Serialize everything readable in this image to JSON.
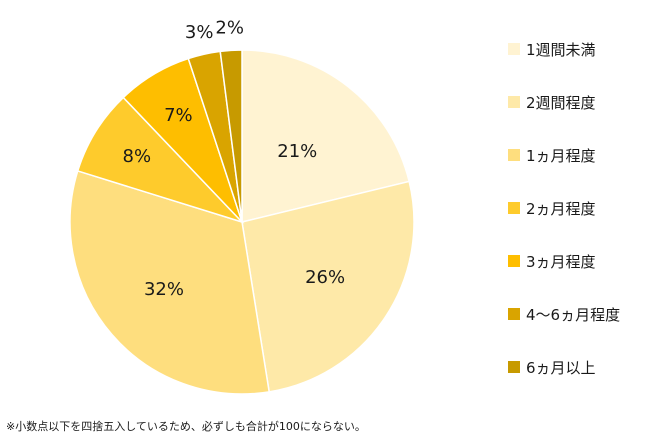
{
  "chart_data": {
    "type": "pie",
    "title": "",
    "categories": [
      "1週間未満",
      "2週間程度",
      "1ヵ月程度",
      "2ヵ月程度",
      "3ヵ月程度",
      "4～6ヵ月程度",
      "6ヵ月以上"
    ],
    "values": [
      21,
      26,
      32,
      8,
      7,
      3,
      2
    ],
    "value_labels": [
      "21%",
      "26%",
      "32%",
      "8%",
      "7%",
      "3%",
      "2%"
    ],
    "colors": [
      "#FFF3D2",
      "#FEE9A8",
      "#FEDE7E",
      "#FECB2C",
      "#FEBE00",
      "#D9A400",
      "#C79A00"
    ],
    "start_angle_deg": 0,
    "direction": "clockwise",
    "legend_position": "right"
  },
  "footnote": "※小数点以下を四捨五入しているため、必ずしも合計が100にならない。"
}
